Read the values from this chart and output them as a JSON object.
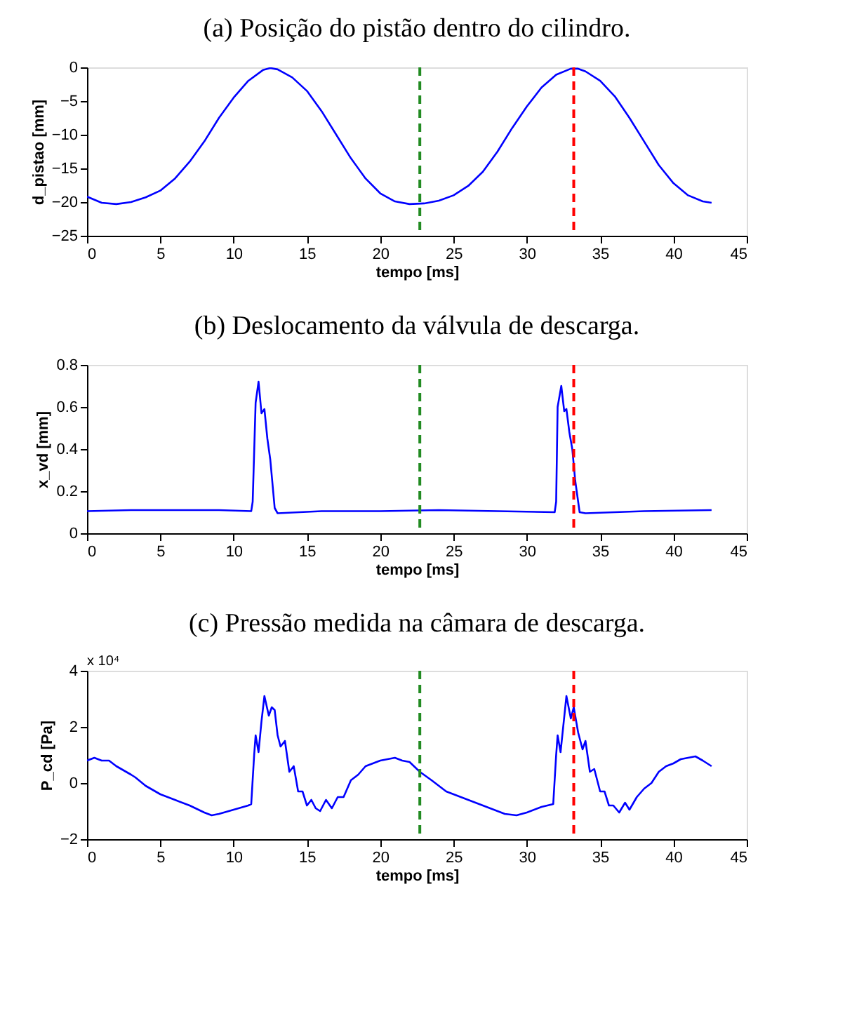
{
  "chart_data": [
    {
      "type": "line",
      "title": "(a) Posição do pistão dentro do cilindro.",
      "xlabel": "tempo [ms]",
      "ylabel": "d_pistao [mm]",
      "x": [
        0,
        1,
        2,
        3,
        4,
        5,
        6,
        7,
        8,
        9,
        10,
        11,
        12,
        12.5,
        13,
        14,
        15,
        16,
        17,
        18,
        19,
        20,
        21,
        22,
        23,
        24,
        25,
        26,
        27,
        28,
        29,
        30,
        31,
        32,
        33,
        33.5,
        34,
        35,
        36,
        37,
        38,
        39,
        40,
        41,
        42,
        42.6
      ],
      "series": [
        {
          "color": "#0000ff",
          "values": [
            -19.2,
            -20.1,
            -20.3,
            -20.0,
            -19.3,
            -18.3,
            -16.5,
            -14,
            -11,
            -7.5,
            -4.5,
            -2,
            -0.4,
            -0.1,
            -0.3,
            -1.5,
            -3.5,
            -6.5,
            -10,
            -13.5,
            -16.5,
            -18.7,
            -19.9,
            -20.3,
            -20.2,
            -19.8,
            -19,
            -17.6,
            -15.5,
            -12.5,
            -9,
            -5.8,
            -3,
            -1.1,
            -0.2,
            -0.2,
            -0.6,
            -2,
            -4.3,
            -7.5,
            -11,
            -14.5,
            -17.2,
            -19,
            -19.9,
            -20.1
          ]
        }
      ],
      "xlim": [
        0,
        45
      ],
      "xticks": [
        0,
        5,
        10,
        15,
        20,
        25,
        30,
        35,
        40,
        45
      ],
      "ylim": [
        -25,
        0
      ],
      "yticks": [
        -25,
        -20,
        -15,
        -10,
        -5,
        0
      ],
      "grid": false,
      "line_style": "solid",
      "ref_lines": [
        {
          "axis": "x",
          "value": 22.7,
          "color": "#228b22",
          "line_style": "dashed"
        },
        {
          "axis": "x",
          "value": 33.2,
          "color": "#ff0000",
          "line_style": "dashed"
        }
      ]
    },
    {
      "type": "line",
      "title": "(b) Deslocamento da válvula de descarga.",
      "xlabel": "tempo [ms]",
      "ylabel": "x_vd [mm]",
      "x": [
        0,
        3,
        6,
        9,
        11.2,
        11.3,
        11.5,
        11.7,
        11.9,
        12.1,
        12.3,
        12.5,
        12.8,
        13,
        16,
        20,
        24,
        28,
        31.9,
        32.0,
        32.1,
        32.35,
        32.55,
        32.7,
        32.9,
        33.1,
        33.3,
        33.6,
        34,
        38,
        42.6
      ],
      "series": [
        {
          "color": "#0000ff",
          "values": [
            0.105,
            0.11,
            0.11,
            0.11,
            0.105,
            0.15,
            0.62,
            0.72,
            0.57,
            0.59,
            0.45,
            0.35,
            0.12,
            0.095,
            0.105,
            0.105,
            0.11,
            0.105,
            0.1,
            0.15,
            0.6,
            0.7,
            0.58,
            0.59,
            0.48,
            0.4,
            0.25,
            0.1,
            0.095,
            0.105,
            0.11
          ]
        }
      ],
      "xlim": [
        0,
        45
      ],
      "xticks": [
        0,
        5,
        10,
        15,
        20,
        25,
        30,
        35,
        40,
        45
      ],
      "ylim": [
        0,
        0.8
      ],
      "yticks": [
        0,
        0.2,
        0.4,
        0.6,
        0.8
      ],
      "grid": false,
      "line_style": "solid",
      "ref_lines": [
        {
          "axis": "x",
          "value": 22.7,
          "color": "#228b22",
          "line_style": "dashed"
        },
        {
          "axis": "x",
          "value": 33.2,
          "color": "#ff0000",
          "line_style": "dashed"
        }
      ]
    },
    {
      "type": "line",
      "title": "(c) Pressão medida na câmara de descarga.",
      "xlabel": "tempo [ms]",
      "ylabel": "P_cd [Pa]",
      "annotations": [
        "x 10⁴"
      ],
      "x": [
        0,
        0.5,
        1,
        1.5,
        2,
        3,
        3.3,
        4,
        5,
        6,
        7,
        8,
        8.5,
        9,
        10,
        11,
        11.2,
        11.4,
        11.5,
        11.7,
        11.9,
        12.1,
        12.4,
        12.6,
        12.8,
        13,
        13.2,
        13.5,
        13.8,
        14.1,
        14.4,
        14.7,
        15,
        15.3,
        15.6,
        15.9,
        16.3,
        16.7,
        17.1,
        17.5,
        18,
        18.5,
        19,
        19.5,
        20,
        20.5,
        21,
        21.5,
        22,
        22.7,
        23.5,
        24.5,
        25.5,
        26.5,
        27.5,
        28.5,
        29.3,
        30,
        31,
        31.8,
        32,
        32.1,
        32.3,
        32.7,
        33,
        33.2,
        33.5,
        33.8,
        34,
        34.3,
        34.6,
        35,
        35.3,
        35.6,
        35.9,
        36.3,
        36.7,
        37,
        37.5,
        38,
        38.5,
        39,
        39.5,
        40,
        40.5,
        41,
        41.5,
        42,
        42.6
      ],
      "series": [
        {
          "color": "#0000ff",
          "values": [
            0.8,
            0.9,
            0.8,
            0.8,
            0.6,
            0.3,
            0.2,
            -0.1,
            -0.4,
            -0.6,
            -0.8,
            -1.05,
            -1.15,
            -1.1,
            -0.95,
            -0.8,
            -0.75,
            1.0,
            1.7,
            1.1,
            2.2,
            3.1,
            2.4,
            2.7,
            2.6,
            1.7,
            1.3,
            1.5,
            0.4,
            0.6,
            -0.3,
            -0.3,
            -0.8,
            -0.6,
            -0.9,
            -1.0,
            -0.6,
            -0.9,
            -0.5,
            -0.5,
            0.1,
            0.3,
            0.6,
            0.7,
            0.8,
            0.85,
            0.9,
            0.8,
            0.75,
            0.4,
            0.1,
            -0.3,
            -0.5,
            -0.7,
            -0.9,
            -1.1,
            -1.15,
            -1.05,
            -0.85,
            -0.75,
            1.0,
            1.7,
            1.1,
            3.1,
            2.3,
            2.7,
            1.8,
            1.2,
            1.5,
            0.4,
            0.5,
            -0.3,
            -0.3,
            -0.8,
            -0.8,
            -1.05,
            -0.7,
            -0.95,
            -0.5,
            -0.2,
            0,
            0.4,
            0.6,
            0.7,
            0.85,
            0.9,
            0.95,
            0.8,
            0.6
          ]
        }
      ],
      "xlim": [
        0,
        45
      ],
      "xticks": [
        0,
        5,
        10,
        15,
        20,
        25,
        30,
        35,
        40,
        45
      ],
      "ylim": [
        -2,
        4
      ],
      "yticks": [
        -2,
        0,
        2,
        4
      ],
      "grid": false,
      "line_style": "solid",
      "ref_lines": [
        {
          "axis": "x",
          "value": 22.7,
          "color": "#228b22",
          "line_style": "dashed"
        },
        {
          "axis": "x",
          "value": 33.2,
          "color": "#ff0000",
          "line_style": "dashed"
        }
      ]
    }
  ]
}
